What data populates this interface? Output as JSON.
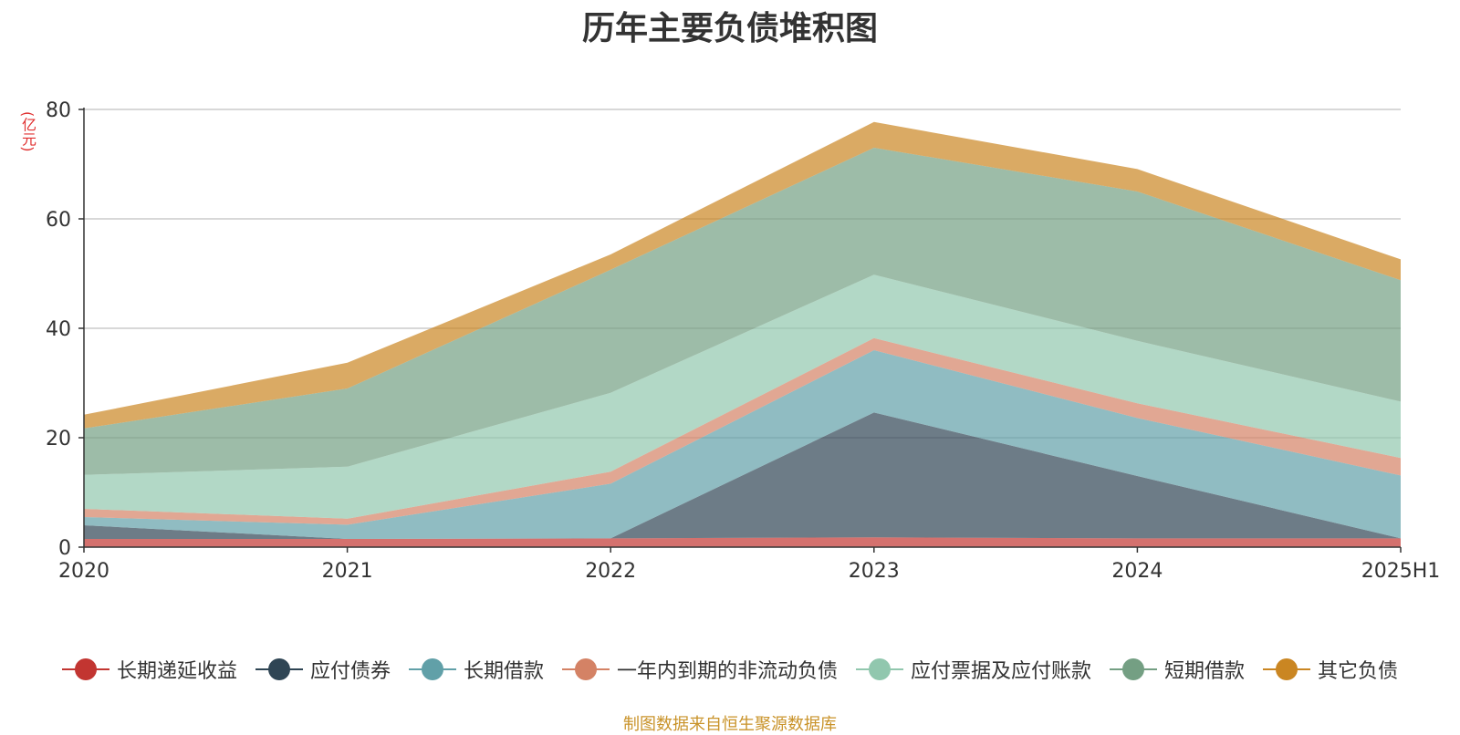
{
  "chart_data": {
    "type": "area",
    "stacked": true,
    "title": "历年主要负债堆积图",
    "unit_label": "(亿元)",
    "categories": [
      "2020",
      "2021",
      "2022",
      "2023",
      "2024",
      "2025H1"
    ],
    "ylim": [
      0,
      80
    ],
    "yticks": [
      0,
      20,
      40,
      60,
      80
    ],
    "grid": true,
    "legend_position": "bottom",
    "series": [
      {
        "name": "长期递延收益",
        "color": "#c23531",
        "values": [
          1.5,
          1.5,
          1.6,
          1.8,
          1.6,
          1.6
        ]
      },
      {
        "name": "应付债券",
        "color": "#2f4554",
        "values": [
          2.5,
          0,
          0,
          22.8,
          11.4,
          0
        ]
      },
      {
        "name": "长期借款",
        "color": "#61a0a8",
        "values": [
          1.5,
          2.6,
          10,
          11.4,
          10.6,
          11.5
        ]
      },
      {
        "name": "一年内到期的非流动负债",
        "color": "#d48265",
        "values": [
          1.5,
          1.1,
          2.2,
          2.2,
          2.7,
          3.2
        ]
      },
      {
        "name": "应付票据及应付账款",
        "color": "#91c7ae",
        "values": [
          6.2,
          9.5,
          14.4,
          11.6,
          11.4,
          10.3
        ]
      },
      {
        "name": "短期借款",
        "color": "#749f83",
        "values": [
          8.5,
          14.3,
          22.5,
          23.2,
          27.3,
          22.2
        ]
      },
      {
        "name": "其它负债",
        "color": "#ca8622",
        "values": [
          2.5,
          4.7,
          2.8,
          4.7,
          4.1,
          3.8
        ]
      }
    ]
  },
  "source_note": "制图数据来自恒生聚源数据库"
}
